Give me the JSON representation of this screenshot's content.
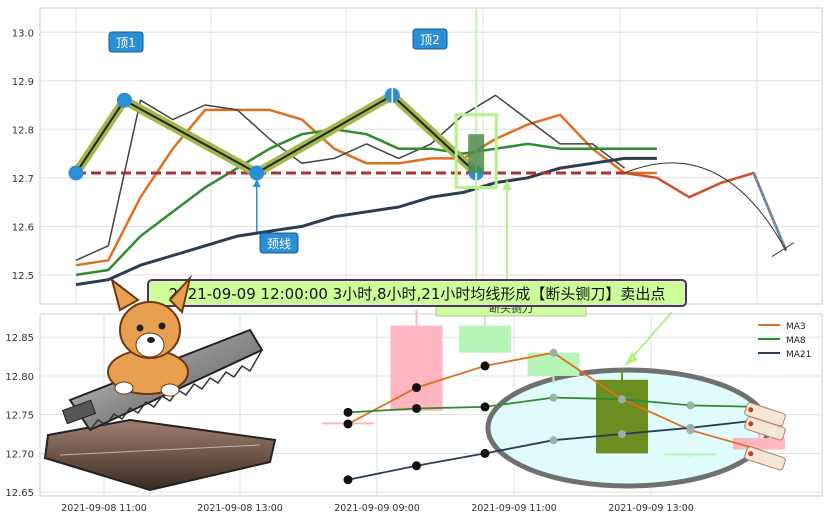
{
  "title_banner": "2021-09-09 12:00:00 3小时,8小时,21小时均线形成【断头铡刀】卖出点",
  "hidden_label": "断头铡刀",
  "chart_data": [
    {
      "type": "line",
      "panel": "upper",
      "yticks": [
        12.5,
        12.6,
        12.7,
        12.8,
        12.9,
        13.0
      ],
      "ylim": [
        12.44,
        13.05
      ],
      "x": [
        0,
        1,
        2,
        3,
        4,
        5,
        6,
        7,
        8,
        9,
        10,
        11,
        12,
        13,
        14,
        15,
        16,
        17,
        18,
        19,
        20,
        21,
        22
      ],
      "series": [
        {
          "role": "price-orange",
          "color": "#e07020",
          "values": [
            12.52,
            12.53,
            12.66,
            12.76,
            12.84,
            12.84,
            12.84,
            12.82,
            12.76,
            12.73,
            12.73,
            12.74,
            12.74,
            12.78,
            12.81,
            12.83,
            12.76,
            12.71,
            12.71,
            null,
            null,
            null,
            null
          ]
        },
        {
          "role": "close-dark",
          "color": "#444444",
          "values": [
            12.53,
            12.56,
            12.86,
            12.82,
            12.85,
            12.84,
            12.78,
            12.73,
            12.74,
            12.77,
            12.74,
            12.77,
            12.83,
            12.87,
            12.82,
            12.77,
            12.77,
            12.72,
            null,
            null,
            null,
            null,
            null
          ]
        },
        {
          "role": "ma-green",
          "color": "#2e8b2e",
          "values": [
            12.5,
            12.51,
            12.58,
            12.63,
            12.68,
            12.72,
            12.76,
            12.79,
            12.8,
            12.79,
            12.76,
            12.76,
            12.75,
            12.76,
            12.77,
            12.76,
            12.76,
            12.76,
            12.76,
            null,
            null,
            null,
            null
          ]
        },
        {
          "role": "ma-navy",
          "color": "#2b3d55",
          "values": [
            12.48,
            12.49,
            12.52,
            12.54,
            12.56,
            12.58,
            12.59,
            12.6,
            12.62,
            12.63,
            12.64,
            12.66,
            12.67,
            12.69,
            12.7,
            12.72,
            12.73,
            12.74,
            12.74,
            null,
            null,
            null,
            null
          ]
        },
        {
          "role": "projection",
          "color": "#d05030",
          "values": [
            null,
            null,
            null,
            null,
            null,
            null,
            null,
            null,
            null,
            null,
            null,
            null,
            null,
            null,
            null,
            null,
            null,
            12.71,
            12.7,
            12.66,
            12.69,
            12.71,
            12.55
          ]
        }
      ],
      "pattern_points": [
        {
          "x": 0,
          "y": 12.71
        },
        {
          "x": 1.5,
          "y": 12.86
        },
        {
          "x": 5.6,
          "y": 12.71
        },
        {
          "x": 9.8,
          "y": 12.87
        },
        {
          "x": 12.4,
          "y": 12.71
        }
      ],
      "neckline": 12.71,
      "annotations": {
        "top1": "顶1",
        "top2": "顶2",
        "neck": "颈线"
      },
      "grid": true
    },
    {
      "type": "candlestick",
      "panel": "lower",
      "yticks": [
        12.65,
        12.7,
        12.75,
        12.8,
        12.85
      ],
      "ylim": [
        12.645,
        12.88
      ],
      "xticks": [
        "2021-09-08 11:00",
        "2021-09-08 13:00",
        "2021-09-09 09:00",
        "2021-09-09 11:00",
        "2021-09-09 13:00"
      ],
      "candles": [
        {
          "idx": 0,
          "open": 12.74,
          "close": 12.74,
          "high": 12.74,
          "low": 12.74,
          "color": "#ffb6c1"
        },
        {
          "idx": 1,
          "open": 12.755,
          "close": 12.865,
          "high": 12.885,
          "low": 12.755,
          "color": "#ffb6c1"
        },
        {
          "idx": 2,
          "open": 12.83,
          "close": 12.865,
          "high": 12.88,
          "low": 12.83,
          "color": "#b8f5b8"
        },
        {
          "idx": 3,
          "open": 12.8,
          "close": 12.83,
          "high": 12.835,
          "low": 12.79,
          "color": "#b8f5b8"
        },
        {
          "idx": 4,
          "open": 12.795,
          "close": 12.7,
          "high": 12.81,
          "low": 12.7,
          "color": "#6b8e23"
        },
        {
          "idx": 5,
          "open": 12.7,
          "close": 12.698,
          "high": 12.7,
          "low": 12.695,
          "color": "#b8f5b8"
        },
        {
          "idx": 6,
          "open": 12.72,
          "close": 12.705,
          "high": 12.76,
          "low": 12.69,
          "color": "#ffb6c1"
        }
      ],
      "series": [
        {
          "name": "MA3",
          "color": "#e07020",
          "values": [
            12.738,
            12.785,
            12.813,
            12.83,
            12.77,
            12.73,
            12.705
          ]
        },
        {
          "name": "MA8",
          "color": "#2e8b2e",
          "values": [
            12.753,
            12.758,
            12.76,
            12.772,
            12.77,
            12.762,
            12.76
          ]
        },
        {
          "name": "MA21",
          "color": "#2b3d55",
          "values": [
            12.666,
            12.684,
            12.7,
            12.717,
            12.725,
            12.733,
            12.743
          ]
        }
      ],
      "legend_position": "top-right",
      "grid": true
    }
  ]
}
